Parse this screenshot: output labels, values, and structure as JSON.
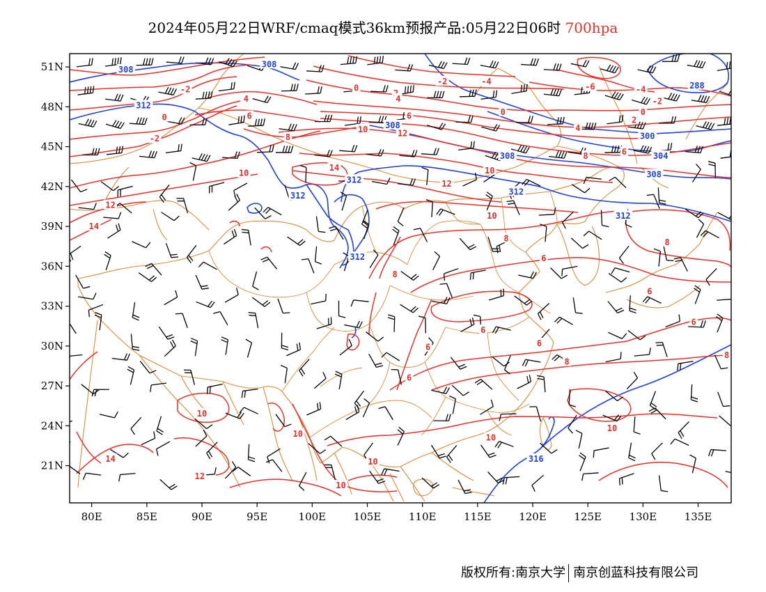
{
  "title": {
    "main": "2024年05月22日WRF/cmaq模式36km预报产品:05月22日06时",
    "level": "700hpa"
  },
  "axes": {
    "lat_labels": [
      "51N",
      "48N",
      "45N",
      "42N",
      "39N",
      "36N",
      "33N",
      "30N",
      "27N",
      "24N",
      "21N"
    ],
    "lon_labels": [
      "80E",
      "85E",
      "90E",
      "95E",
      "100E",
      "105E",
      "110E",
      "115E",
      "120E",
      "125E",
      "130E",
      "135E"
    ],
    "lat_range": [
      18.2,
      52.0
    ],
    "lon_range": [
      78.0,
      138.0
    ]
  },
  "colors": {
    "temperature": "#e8302a",
    "geopotential": "#1f3fe0",
    "boundary": "#d98c3a",
    "wind": "#000000"
  },
  "contour_labels": {
    "temperature": [
      {
        "text": "-2",
        "lon": 88.5,
        "lat": 49.3
      },
      {
        "text": "0",
        "lon": 86.6,
        "lat": 47.2
      },
      {
        "text": "-2",
        "lon": 85.7,
        "lat": 45.6
      },
      {
        "text": "4",
        "lon": 94.0,
        "lat": 48.6
      },
      {
        "text": "6",
        "lon": 94.3,
        "lat": 47.3
      },
      {
        "text": "8",
        "lon": 97.8,
        "lat": 45.7
      },
      {
        "text": "10",
        "lon": 93.8,
        "lat": 43.0
      },
      {
        "text": "12",
        "lon": 81.7,
        "lat": 40.6
      },
      {
        "text": "14",
        "lon": 80.2,
        "lat": 39.0
      },
      {
        "text": "0",
        "lon": 104.0,
        "lat": 49.4
      },
      {
        "text": "2",
        "lon": 107.6,
        "lat": 49.0
      },
      {
        "text": "4",
        "lon": 107.8,
        "lat": 48.6
      },
      {
        "text": "6",
        "lon": 108.8,
        "lat": 47.3
      },
      {
        "text": "10",
        "lon": 104.6,
        "lat": 46.3
      },
      {
        "text": "12",
        "lon": 108.2,
        "lat": 46.0
      },
      {
        "text": "14",
        "lon": 102.0,
        "lat": 43.4
      },
      {
        "text": "12",
        "lon": 112.2,
        "lat": 42.2
      },
      {
        "text": "-2",
        "lon": 111.8,
        "lat": 49.9
      },
      {
        "text": "-4",
        "lon": 115.8,
        "lat": 49.9
      },
      {
        "text": "0",
        "lon": 117.3,
        "lat": 47.6
      },
      {
        "text": "-6",
        "lon": 125.2,
        "lat": 49.5
      },
      {
        "text": "-4",
        "lon": 129.8,
        "lat": 49.3
      },
      {
        "text": "-2",
        "lon": 131.3,
        "lat": 48.4
      },
      {
        "text": "0",
        "lon": 130.0,
        "lat": 47.6
      },
      {
        "text": "2",
        "lon": 129.2,
        "lat": 47.0
      },
      {
        "text": "4",
        "lon": 124.1,
        "lat": 46.4
      },
      {
        "text": "6",
        "lon": 128.3,
        "lat": 44.6
      },
      {
        "text": "8",
        "lon": 124.8,
        "lat": 44.3
      },
      {
        "text": "10",
        "lon": 116.1,
        "lat": 43.2
      },
      {
        "text": "10",
        "lon": 116.3,
        "lat": 39.8
      },
      {
        "text": "8",
        "lon": 117.6,
        "lat": 38.1
      },
      {
        "text": "6",
        "lon": 121.0,
        "lat": 36.6
      },
      {
        "text": "8",
        "lon": 132.2,
        "lat": 37.8
      },
      {
        "text": "6",
        "lon": 130.6,
        "lat": 34.1
      },
      {
        "text": "6",
        "lon": 134.6,
        "lat": 31.8
      },
      {
        "text": "8",
        "lon": 107.5,
        "lat": 35.4
      },
      {
        "text": "6",
        "lon": 115.5,
        "lat": 31.2
      },
      {
        "text": "6",
        "lon": 110.5,
        "lat": 29.9
      },
      {
        "text": "6",
        "lon": 120.6,
        "lat": 30.2
      },
      {
        "text": "8",
        "lon": 123.1,
        "lat": 28.8
      },
      {
        "text": "6",
        "lon": 108.8,
        "lat": 27.6
      },
      {
        "text": "8",
        "lon": 137.6,
        "lat": 29.3
      },
      {
        "text": "10",
        "lon": 90.0,
        "lat": 24.9
      },
      {
        "text": "10",
        "lon": 98.7,
        "lat": 23.4
      },
      {
        "text": "14",
        "lon": 81.7,
        "lat": 21.5
      },
      {
        "text": "12",
        "lon": 89.8,
        "lat": 20.2
      },
      {
        "text": "10",
        "lon": 105.5,
        "lat": 21.3
      },
      {
        "text": "10",
        "lon": 102.6,
        "lat": 19.5
      },
      {
        "text": "10",
        "lon": 116.2,
        "lat": 23.1
      },
      {
        "text": "10",
        "lon": 127.2,
        "lat": 23.8
      }
    ],
    "geopotential": [
      {
        "text": "308",
        "lon": 83.1,
        "lat": 50.8
      },
      {
        "text": "312",
        "lon": 84.7,
        "lat": 48.1
      },
      {
        "text": "308",
        "lon": 96.1,
        "lat": 51.2
      },
      {
        "text": "312",
        "lon": 103.8,
        "lat": 42.5
      },
      {
        "text": "312",
        "lon": 98.7,
        "lat": 41.3
      },
      {
        "text": "308",
        "lon": 107.3,
        "lat": 46.6
      },
      {
        "text": "308",
        "lon": 117.7,
        "lat": 44.3
      },
      {
        "text": "312",
        "lon": 118.5,
        "lat": 41.6
      },
      {
        "text": "312",
        "lon": 128.2,
        "lat": 39.8
      },
      {
        "text": "300",
        "lon": 130.4,
        "lat": 45.8
      },
      {
        "text": "304",
        "lon": 131.6,
        "lat": 44.3
      },
      {
        "text": "308",
        "lon": 131.0,
        "lat": 42.9
      },
      {
        "text": "288",
        "lon": 134.9,
        "lat": 49.6
      },
      {
        "text": "312",
        "lon": 104.1,
        "lat": 36.7
      },
      {
        "text": "316",
        "lon": 120.3,
        "lat": 21.5
      }
    ]
  },
  "footer": {
    "owner": "版权所有:南京大学",
    "company": "南京创蓝科技有限公司"
  }
}
